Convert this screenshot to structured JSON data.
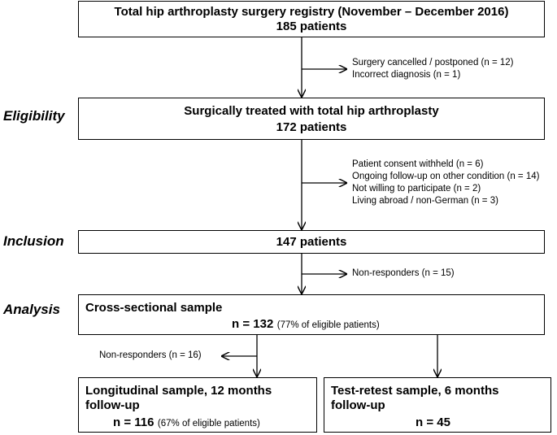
{
  "stages": {
    "eligibility": "Eligibility",
    "inclusion": "Inclusion",
    "analysis": "Analysis"
  },
  "registry": {
    "title": "Total hip arthroplasty surgery registry (November – December 2016)",
    "count": "185 patients"
  },
  "exclusion_1": [
    "Surgery cancelled / postponed (n = 12)",
    "Incorrect diagnosis (n = 1)"
  ],
  "surgical": {
    "title": "Surgically treated with total hip arthroplasty",
    "count": "172 patients"
  },
  "exclusion_2": [
    "Patient consent withheld (n = 6)",
    "Ongoing follow-up on other condition (n = 14)",
    "Not willing to participate (n = 2)",
    "Living abroad / non-German (n = 3)"
  ],
  "inclusion_box": {
    "count": "147 patients"
  },
  "exclusion_3": "Non-responders (n = 15)",
  "cross_sectional": {
    "title": "Cross-sectional sample",
    "n": "n = 132",
    "note": "(77% of eligible patients)"
  },
  "exclusion_4": "Non-responders (n = 16)",
  "longitudinal": {
    "title_line1": "Longitudinal sample, 12 months",
    "title_line2": "follow-up",
    "n": "n = 116",
    "note": "(67% of eligible patients)"
  },
  "test_retest": {
    "title_line1": "Test-retest sample, 6 months",
    "title_line2": "follow-up",
    "n": "n = 45"
  }
}
